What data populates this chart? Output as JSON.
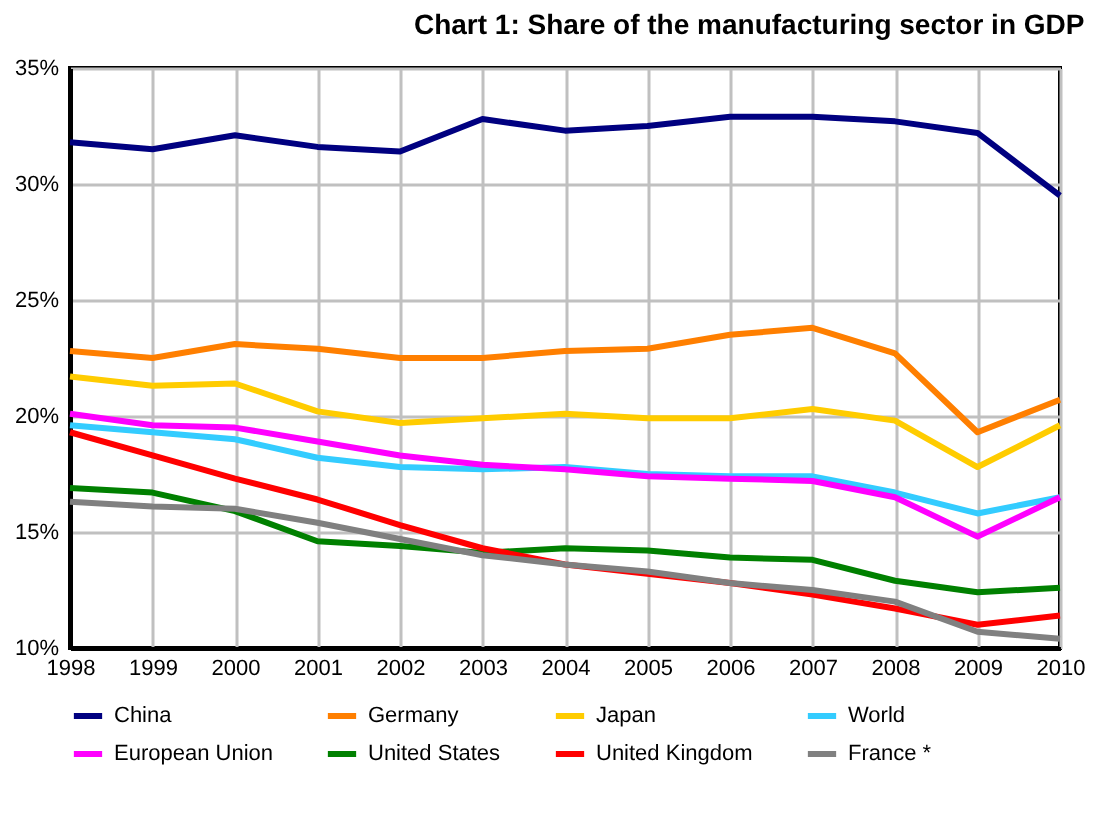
{
  "chart_data": {
    "type": "line",
    "title": "Chart 1: Share of the manufacturing sector in GDP",
    "x": [
      1998,
      1999,
      2000,
      2001,
      2002,
      2003,
      2004,
      2005,
      2006,
      2007,
      2008,
      2009,
      2010
    ],
    "xlim": [
      1998,
      2010
    ],
    "xticks": [
      1998,
      1999,
      2000,
      2001,
      2002,
      2003,
      2004,
      2005,
      2006,
      2007,
      2008,
      2009,
      2010
    ],
    "ylim": [
      10,
      35
    ],
    "yticks": [
      {
        "value": 10,
        "label": "10%"
      },
      {
        "value": 15,
        "label": "15%"
      },
      {
        "value": 20,
        "label": "20%"
      },
      {
        "value": 25,
        "label": "25%"
      },
      {
        "value": 30,
        "label": "30%"
      },
      {
        "value": 35,
        "label": "35%"
      }
    ],
    "grid": true,
    "legend": "bottom",
    "marker": "none",
    "line_style": "solid",
    "series": [
      {
        "name": "China",
        "color": "#000080",
        "values": [
          31.8,
          31.5,
          32.1,
          31.6,
          31.4,
          32.8,
          32.3,
          32.5,
          32.9,
          32.9,
          32.7,
          32.2,
          29.5
        ]
      },
      {
        "name": "Germany",
        "color": "#ff7f00",
        "values": [
          22.8,
          22.5,
          23.1,
          22.9,
          22.5,
          22.5,
          22.8,
          22.9,
          23.5,
          23.8,
          22.7,
          19.3,
          20.7
        ]
      },
      {
        "name": "Japan",
        "color": "#ffcc00",
        "values": [
          21.7,
          21.3,
          21.4,
          20.2,
          19.7,
          19.9,
          20.1,
          19.9,
          19.9,
          20.3,
          19.8,
          17.8,
          19.6
        ]
      },
      {
        "name": "World",
        "color": "#33ccff",
        "values": [
          19.6,
          19.3,
          19.0,
          18.2,
          17.8,
          17.7,
          17.8,
          17.5,
          17.4,
          17.4,
          16.7,
          15.8,
          16.5
        ]
      },
      {
        "name": "European Union",
        "color": "#ff00ff",
        "values": [
          20.1,
          19.6,
          19.5,
          18.9,
          18.3,
          17.9,
          17.7,
          17.4,
          17.3,
          17.2,
          16.5,
          14.8,
          16.5
        ]
      },
      {
        "name": "United States",
        "color": "#008000",
        "values": [
          16.9,
          16.7,
          15.9,
          14.6,
          14.4,
          14.1,
          14.3,
          14.2,
          13.9,
          13.8,
          12.9,
          12.4,
          12.6
        ]
      },
      {
        "name": "United Kingdom",
        "color": "#ff0000",
        "values": [
          19.3,
          18.3,
          17.3,
          16.4,
          15.3,
          14.3,
          13.6,
          13.2,
          12.8,
          12.3,
          11.7,
          11.0,
          11.4
        ]
      },
      {
        "name": "France *",
        "color": "#808080",
        "values": [
          16.3,
          16.1,
          16.0,
          15.4,
          14.7,
          14.0,
          13.6,
          13.3,
          12.8,
          12.5,
          12.0,
          10.7,
          10.4
        ]
      }
    ]
  }
}
